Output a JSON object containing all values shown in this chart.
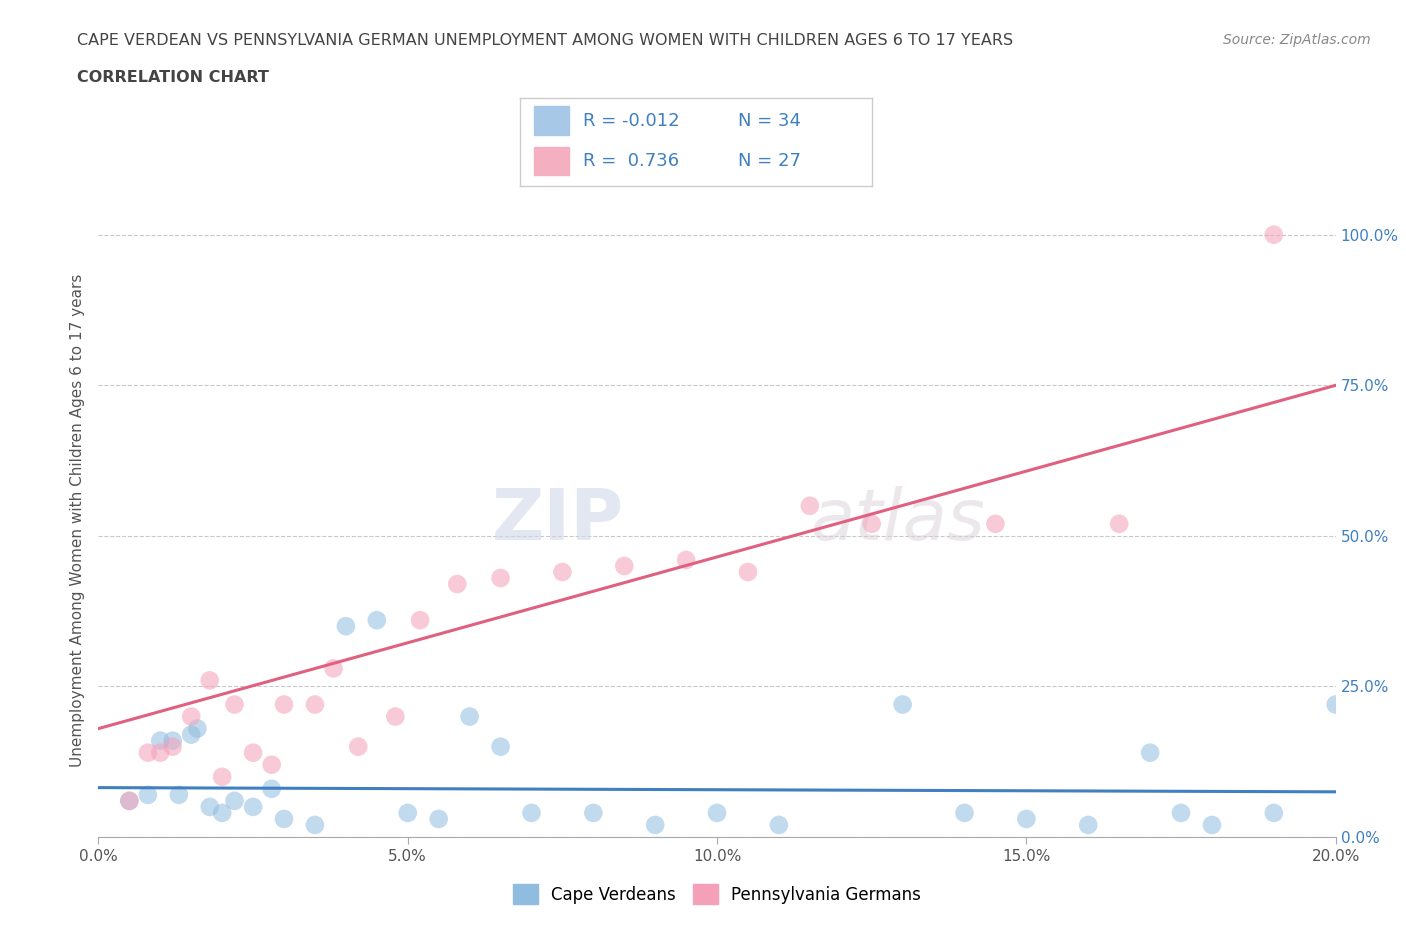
{
  "title_line1": "CAPE VERDEAN VS PENNSYLVANIA GERMAN UNEMPLOYMENT AMONG WOMEN WITH CHILDREN AGES 6 TO 17 YEARS",
  "title_line2": "CORRELATION CHART",
  "source_text": "Source: ZipAtlas.com",
  "ylabel": "Unemployment Among Women with Children Ages 6 to 17 years",
  "xlim": [
    0.0,
    0.2
  ],
  "ylim": [
    0.0,
    1.05
  ],
  "yticks": [
    0.0,
    0.25,
    0.5,
    0.75,
    1.0
  ],
  "ytick_labels": [
    "0.0%",
    "25.0%",
    "50.0%",
    "75.0%",
    "100.0%"
  ],
  "xticks": [
    0.0,
    0.05,
    0.1,
    0.15,
    0.2
  ],
  "xtick_labels": [
    "0.0%",
    "5.0%",
    "10.0%",
    "15.0%",
    "20.0%"
  ],
  "legend_entries": [
    {
      "label": "Cape Verdeans",
      "color": "#a8c8e8",
      "R": "-0.012",
      "N": "34"
    },
    {
      "label": "Pennsylvania Germans",
      "color": "#f4b0c0",
      "R": "0.736",
      "N": "27"
    }
  ],
  "blue_scatter_x": [
    0.005,
    0.008,
    0.01,
    0.012,
    0.013,
    0.015,
    0.016,
    0.018,
    0.02,
    0.022,
    0.025,
    0.028,
    0.03,
    0.035,
    0.04,
    0.045,
    0.05,
    0.055,
    0.06,
    0.065,
    0.07,
    0.08,
    0.09,
    0.1,
    0.11,
    0.13,
    0.14,
    0.15,
    0.16,
    0.17,
    0.175,
    0.18,
    0.19,
    0.2
  ],
  "blue_scatter_y": [
    0.06,
    0.07,
    0.16,
    0.16,
    0.07,
    0.17,
    0.18,
    0.05,
    0.04,
    0.06,
    0.05,
    0.08,
    0.03,
    0.02,
    0.35,
    0.36,
    0.04,
    0.03,
    0.2,
    0.15,
    0.04,
    0.04,
    0.02,
    0.04,
    0.02,
    0.22,
    0.04,
    0.03,
    0.02,
    0.14,
    0.04,
    0.02,
    0.04,
    0.22
  ],
  "pink_scatter_x": [
    0.005,
    0.008,
    0.01,
    0.012,
    0.015,
    0.018,
    0.02,
    0.022,
    0.025,
    0.028,
    0.03,
    0.035,
    0.038,
    0.042,
    0.048,
    0.052,
    0.058,
    0.065,
    0.075,
    0.085,
    0.095,
    0.105,
    0.115,
    0.125,
    0.145,
    0.165,
    0.19
  ],
  "pink_scatter_y": [
    0.06,
    0.14,
    0.14,
    0.15,
    0.2,
    0.26,
    0.1,
    0.22,
    0.14,
    0.12,
    0.22,
    0.22,
    0.28,
    0.15,
    0.2,
    0.36,
    0.42,
    0.43,
    0.44,
    0.45,
    0.46,
    0.44,
    0.55,
    0.52,
    0.52,
    0.52,
    1.0
  ],
  "blue_line_x": [
    0.0,
    0.2
  ],
  "blue_line_y": [
    0.082,
    0.075
  ],
  "pink_line_x": [
    0.0,
    0.2
  ],
  "pink_line_y": [
    0.18,
    0.75
  ],
  "blue_scatter_color": "#90bce0",
  "pink_scatter_color": "#f4a0b8",
  "blue_line_color": "#4080c0",
  "pink_line_color": "#e06080",
  "watermark_zip": "ZIP",
  "watermark_atlas": "atlas",
  "background_color": "#ffffff",
  "grid_color": "#bbbbbb",
  "title_color": "#444444",
  "axis_label_color": "#555555",
  "ytick_color": "#4080c0"
}
